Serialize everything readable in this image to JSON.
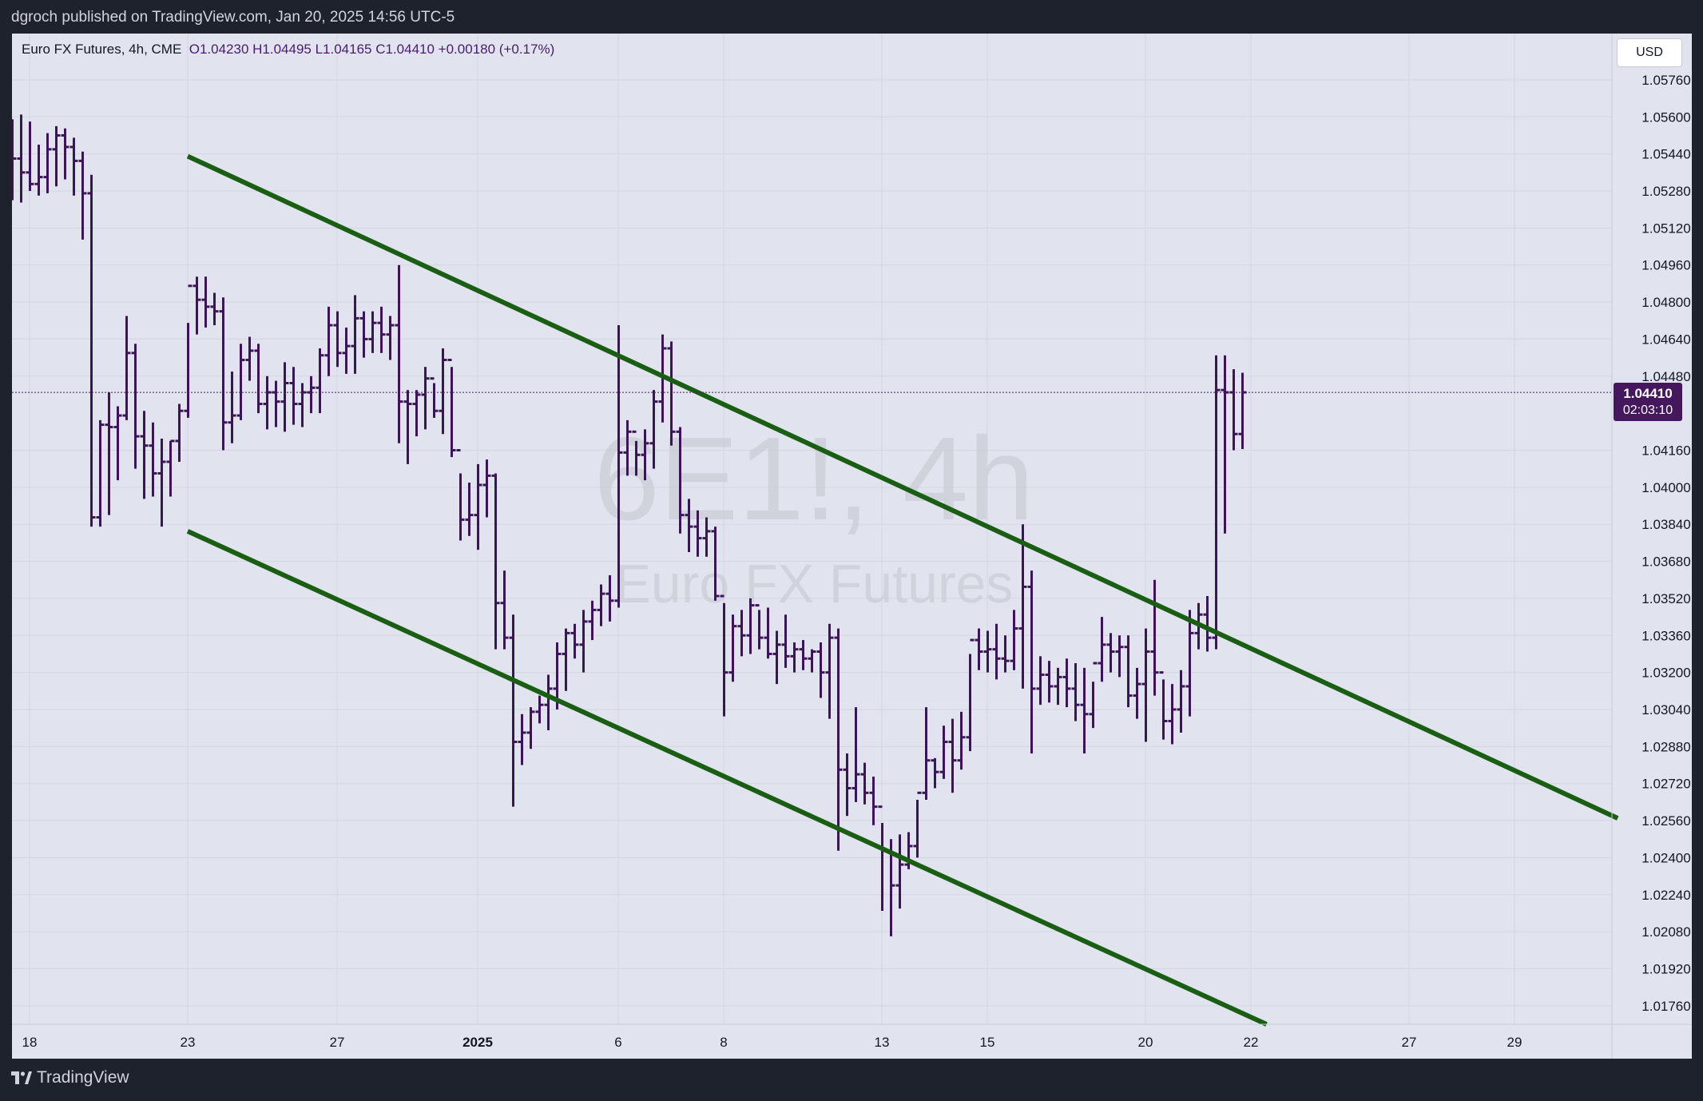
{
  "topbar": {
    "publisher_text": "dgroch published on TradingView.com, Jan 20, 2025 14:56 UTC-5"
  },
  "legend": {
    "symbol": "Euro FX Futures, 4h, CME",
    "ohlc": "O1.04230  H1.04495  L1.04165  C1.04410  +0.00180 (+0.17%)"
  },
  "currency_button": "USD",
  "price_label": {
    "price": "1.04410",
    "countdown": "02:03:10"
  },
  "watermark": {
    "line1": "6E1!, 4h",
    "line2": "Euro FX Futures"
  },
  "footer": {
    "brand": "TradingView"
  },
  "colors": {
    "background": "#e1e4ee",
    "bar": "#3d1457",
    "channel_line": "#1a5e14",
    "price_label_bg": "#45185e",
    "frame": "#1e222d"
  },
  "chart_data": {
    "type": "ohlc",
    "symbol": "6E1!",
    "interval": "4h",
    "y_ticks": [
      "1.05760",
      "1.05600",
      "1.05440",
      "1.05280",
      "1.05120",
      "1.04960",
      "1.04800",
      "1.04640",
      "1.04480",
      "1.04160",
      "1.04000",
      "1.03840",
      "1.03680",
      "1.03520",
      "1.03360",
      "1.03200",
      "1.03040",
      "1.02880",
      "1.02720",
      "1.02560",
      "1.02400",
      "1.02240",
      "1.02080",
      "1.01920",
      "1.01760"
    ],
    "ylim": [
      1.0168,
      1.0596
    ],
    "x_ticks": [
      {
        "label": "18",
        "i": 2
      },
      {
        "label": "23",
        "i": 20
      },
      {
        "label": "27",
        "i": 37
      },
      {
        "label": "2025",
        "i": 53,
        "bold": true
      },
      {
        "label": "6",
        "i": 69
      },
      {
        "label": "8",
        "i": 81
      },
      {
        "label": "13",
        "i": 99
      },
      {
        "label": "15",
        "i": 111
      },
      {
        "label": "20",
        "i": 129
      },
      {
        "label": "22",
        "i": 141
      },
      {
        "label": "27",
        "i": 159
      },
      {
        "label": "29",
        "i": 171
      }
    ],
    "x_range": [
      0,
      182.75
    ],
    "current_price": 1.0441,
    "bars": [
      [
        1.0533,
        1.0559,
        1.0524,
        1.0542
      ],
      [
        1.0542,
        1.0561,
        1.0523,
        1.0536
      ],
      [
        1.0536,
        1.0558,
        1.0528,
        1.0531
      ],
      [
        1.0531,
        1.0548,
        1.0526,
        1.0534
      ],
      [
        1.0534,
        1.0553,
        1.0527,
        1.0546
      ],
      [
        1.0546,
        1.0556,
        1.053,
        1.0552
      ],
      [
        1.0552,
        1.0555,
        1.0533,
        1.0547
      ],
      [
        1.0547,
        1.0551,
        1.0526,
        1.0541
      ],
      [
        1.0541,
        1.0545,
        1.0507,
        1.0527
      ],
      [
        1.0527,
        1.0535,
        1.0383,
        1.0387
      ],
      [
        1.0387,
        1.0429,
        1.0383,
        1.0427
      ],
      [
        1.0427,
        1.0441,
        1.0388,
        1.0426
      ],
      [
        1.0426,
        1.0435,
        1.0403,
        1.0431
      ],
      [
        1.0431,
        1.0474,
        1.0429,
        1.0458
      ],
      [
        1.0458,
        1.0462,
        1.0408,
        1.0422
      ],
      [
        1.0422,
        1.0433,
        1.0395,
        1.0418
      ],
      [
        1.0418,
        1.0428,
        1.0396,
        1.0406
      ],
      [
        1.0406,
        1.0421,
        1.0383,
        1.0411
      ],
      [
        1.0411,
        1.042,
        1.0396,
        1.042
      ],
      [
        1.042,
        1.0436,
        1.0411,
        1.0433
      ],
      [
        1.0433,
        1.0471,
        1.043,
        1.0487
      ],
      [
        1.0487,
        1.0491,
        1.0466,
        1.0481
      ],
      [
        1.0481,
        1.0491,
        1.0469,
        1.0478
      ],
      [
        1.0478,
        1.0484,
        1.047,
        1.0476
      ],
      [
        1.0476,
        1.0482,
        1.0416,
        1.0428
      ],
      [
        1.0428,
        1.045,
        1.0419,
        1.0431
      ],
      [
        1.0431,
        1.0462,
        1.0429,
        1.0455
      ],
      [
        1.0455,
        1.0465,
        1.0446,
        1.0459
      ],
      [
        1.0459,
        1.0462,
        1.0432,
        1.0436
      ],
      [
        1.0436,
        1.0448,
        1.0425,
        1.0441
      ],
      [
        1.0441,
        1.0446,
        1.0426,
        1.0437
      ],
      [
        1.0437,
        1.0454,
        1.0424,
        1.0445
      ],
      [
        1.0445,
        1.0452,
        1.0427,
        1.0436
      ],
      [
        1.0436,
        1.0445,
        1.0426,
        1.0441
      ],
      [
        1.0441,
        1.0448,
        1.0432,
        1.0443
      ],
      [
        1.0443,
        1.046,
        1.0432,
        1.0457
      ],
      [
        1.0457,
        1.0478,
        1.0448,
        1.047
      ],
      [
        1.047,
        1.0476,
        1.0452,
        1.0458
      ],
      [
        1.0458,
        1.0469,
        1.0449,
        1.0461
      ],
      [
        1.0461,
        1.0483,
        1.0449,
        1.0473
      ],
      [
        1.0473,
        1.0476,
        1.0456,
        1.0464
      ],
      [
        1.0464,
        1.0476,
        1.0458,
        1.0471
      ],
      [
        1.0471,
        1.0478,
        1.0458,
        1.0466
      ],
      [
        1.0466,
        1.0474,
        1.0455,
        1.047
      ],
      [
        1.047,
        1.0496,
        1.0419,
        1.0437
      ],
      [
        1.0437,
        1.0442,
        1.041,
        1.0436
      ],
      [
        1.0436,
        1.0442,
        1.0422,
        1.044
      ],
      [
        1.044,
        1.0452,
        1.0425,
        1.0447
      ],
      [
        1.0447,
        1.0445,
        1.043,
        1.0433
      ],
      [
        1.0433,
        1.046,
        1.0423,
        1.0455
      ],
      [
        1.0455,
        1.0452,
        1.0413,
        1.0416
      ],
      [
        1.0416,
        1.0406,
        1.0377,
        1.0386
      ],
      [
        1.0386,
        1.0402,
        1.0379,
        1.0388
      ],
      [
        1.0388,
        1.041,
        1.0373,
        1.0401
      ],
      [
        1.0401,
        1.0412,
        1.0387,
        1.0405
      ],
      [
        1.0405,
        1.0406,
        1.033,
        1.035
      ],
      [
        1.035,
        1.0364,
        1.033,
        1.0335
      ],
      [
        1.0335,
        1.0345,
        1.0262,
        1.029
      ],
      [
        1.029,
        1.0302,
        1.028,
        1.0294
      ],
      [
        1.0294,
        1.0305,
        1.0287,
        1.0303
      ],
      [
        1.0303,
        1.031,
        1.0298,
        1.0306
      ],
      [
        1.0306,
        1.0319,
        1.0295,
        1.0313
      ],
      [
        1.0313,
        1.0333,
        1.0304,
        1.0328
      ],
      [
        1.0328,
        1.0339,
        1.0312,
        1.0337
      ],
      [
        1.0337,
        1.0341,
        1.0326,
        1.0332
      ],
      [
        1.0332,
        1.0347,
        1.032,
        1.0342
      ],
      [
        1.0342,
        1.0351,
        1.0334,
        1.0347
      ],
      [
        1.0347,
        1.0358,
        1.034,
        1.0354
      ],
      [
        1.0354,
        1.0362,
        1.0342,
        1.0351
      ],
      [
        1.0351,
        1.047,
        1.0348,
        1.0415
      ],
      [
        1.0415,
        1.0429,
        1.0405,
        1.0424
      ],
      [
        1.0424,
        1.042,
        1.0405,
        1.0414
      ],
      [
        1.0414,
        1.0425,
        1.0403,
        1.0419
      ],
      [
        1.0419,
        1.0442,
        1.0408,
        1.0437
      ],
      [
        1.0437,
        1.0466,
        1.0428,
        1.046
      ],
      [
        1.046,
        1.0463,
        1.0418,
        1.0424
      ],
      [
        1.0424,
        1.0426,
        1.038,
        1.0388
      ],
      [
        1.0388,
        1.0395,
        1.0372,
        1.0383
      ],
      [
        1.0383,
        1.039,
        1.037,
        1.0378
      ],
      [
        1.0378,
        1.0387,
        1.037,
        1.0381
      ],
      [
        1.0381,
        1.0383,
        1.0351,
        1.0353
      ],
      [
        1.0353,
        1.035,
        1.0301,
        1.032
      ],
      [
        1.032,
        1.0345,
        1.0316,
        1.034
      ],
      [
        1.034,
        1.0347,
        1.0327,
        1.0336
      ],
      [
        1.0336,
        1.0352,
        1.0328,
        1.0349
      ],
      [
        1.0349,
        1.0347,
        1.033,
        1.0335
      ],
      [
        1.0335,
        1.0348,
        1.0326,
        1.0328
      ],
      [
        1.0328,
        1.0338,
        1.0315,
        1.0332
      ],
      [
        1.0332,
        1.0345,
        1.0322,
        1.0327
      ],
      [
        1.0327,
        1.0333,
        1.032,
        1.033
      ],
      [
        1.033,
        1.0334,
        1.0321,
        1.0326
      ],
      [
        1.0326,
        1.033,
        1.032,
        1.0329
      ],
      [
        1.0329,
        1.0333,
        1.0309,
        1.032
      ],
      [
        1.032,
        1.0341,
        1.03,
        1.0335
      ],
      [
        1.0335,
        1.0339,
        1.0243,
        1.0278
      ],
      [
        1.0278,
        1.0285,
        1.0258,
        1.027
      ],
      [
        1.027,
        1.0305,
        1.0264,
        1.0276
      ],
      [
        1.0276,
        1.0281,
        1.0263,
        1.0268
      ],
      [
        1.0268,
        1.0275,
        1.0254,
        1.0262
      ],
      [
        1.0262,
        1.0255,
        1.0217,
        1.0243
      ],
      [
        1.0243,
        1.0248,
        1.0206,
        1.0228
      ],
      [
        1.0228,
        1.025,
        1.0218,
        1.0237
      ],
      [
        1.0237,
        1.0251,
        1.0235,
        1.0245
      ],
      [
        1.0245,
        1.0265,
        1.024,
        1.0268
      ],
      [
        1.0268,
        1.0305,
        1.0265,
        1.0282
      ],
      [
        1.0282,
        1.0283,
        1.027,
        1.0277
      ],
      [
        1.0277,
        1.0297,
        1.0274,
        1.029
      ],
      [
        1.029,
        1.03,
        1.0268,
        1.0282
      ],
      [
        1.0282,
        1.0303,
        1.0278,
        1.0292
      ],
      [
        1.0292,
        1.0328,
        1.0286,
        1.0334
      ],
      [
        1.0334,
        1.0339,
        1.0321,
        1.0329
      ],
      [
        1.0329,
        1.0338,
        1.032,
        1.033
      ],
      [
        1.033,
        1.0341,
        1.0317,
        1.0326
      ],
      [
        1.0326,
        1.0336,
        1.032,
        1.0325
      ],
      [
        1.0325,
        1.0347,
        1.0321,
        1.0339
      ],
      [
        1.0339,
        1.0384,
        1.0313,
        1.0357
      ],
      [
        1.0357,
        1.0364,
        1.0285,
        1.0313
      ],
      [
        1.0313,
        1.0327,
        1.0306,
        1.0319
      ],
      [
        1.0319,
        1.0325,
        1.0307,
        1.0314
      ],
      [
        1.0314,
        1.0322,
        1.0306,
        1.0318
      ],
      [
        1.0318,
        1.0326,
        1.0305,
        1.0313
      ],
      [
        1.0313,
        1.0324,
        1.0299,
        1.0306
      ],
      [
        1.0306,
        1.0322,
        1.0285,
        1.0302
      ],
      [
        1.0302,
        1.0316,
        1.0296,
        1.0324
      ],
      [
        1.0324,
        1.0344,
        1.0316,
        1.0332
      ],
      [
        1.0332,
        1.0337,
        1.032,
        1.0329
      ],
      [
        1.0329,
        1.0336,
        1.0318,
        1.0331
      ],
      [
        1.0331,
        1.0336,
        1.0305,
        1.031
      ],
      [
        1.031,
        1.0322,
        1.03,
        1.0315
      ],
      [
        1.0315,
        1.0339,
        1.029,
        1.0329
      ],
      [
        1.0329,
        1.036,
        1.031,
        1.032
      ],
      [
        1.032,
        1.0317,
        1.0291,
        1.0299
      ],
      [
        1.0299,
        1.0315,
        1.0289,
        1.0304
      ],
      [
        1.0304,
        1.0321,
        1.0294,
        1.0314
      ],
      [
        1.0314,
        1.0347,
        1.0301,
        1.0337
      ],
      [
        1.0337,
        1.035,
        1.033,
        1.0345
      ],
      [
        1.0345,
        1.0353,
        1.0329,
        1.0335
      ],
      [
        1.0335,
        1.0457,
        1.033,
        1.0442
      ],
      [
        1.0442,
        1.0457,
        1.038,
        1.0441
      ],
      [
        1.0441,
        1.0451,
        1.0416,
        1.0423
      ],
      [
        1.0423,
        1.04495,
        1.04165,
        1.0441
      ]
    ],
    "channel_lines": [
      {
        "x1": 20.0,
        "y1": 1.0543,
        "x2": 182.75,
        "y2": 1.0257
      },
      {
        "x1": 20.0,
        "y1": 1.0381,
        "x2": 142.78,
        "y2": 1.0168
      }
    ]
  }
}
